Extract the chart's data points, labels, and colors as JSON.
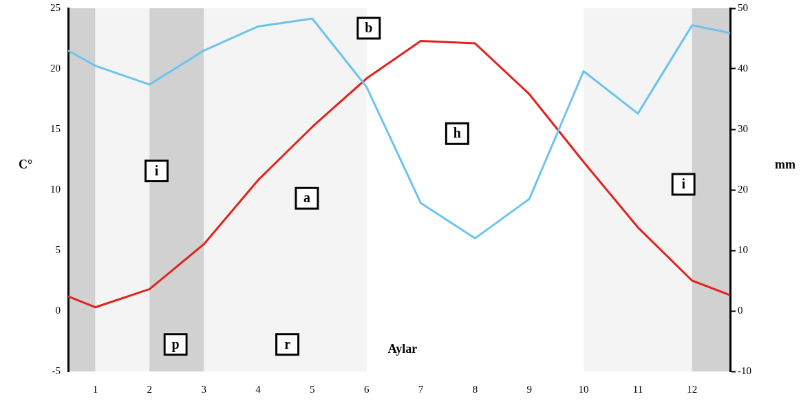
{
  "chart_data": {
    "type": "line",
    "xlabel": "Aylar",
    "ylabel": "C°",
    "y2label": "mm",
    "xlim": [
      0.5,
      12.7
    ],
    "xticks": [
      1,
      2,
      3,
      4,
      5,
      6,
      7,
      8,
      9,
      10,
      11,
      12
    ],
    "ylim": [
      -5,
      25
    ],
    "yticks": [
      -5,
      0,
      5,
      10,
      15,
      20,
      25
    ],
    "y2lim": [
      -10,
      50
    ],
    "y2ticks": [
      -10,
      0,
      10,
      20,
      30,
      40,
      50
    ],
    "x": [
      0.5,
      1,
      2,
      3,
      4,
      5,
      6,
      7,
      8,
      9,
      10,
      11,
      12,
      12.7
    ],
    "series": [
      {
        "color": "#e0231c",
        "values": [
          1.2,
          0.3,
          1.8,
          5.5,
          10.8,
          15.2,
          19.2,
          22.3,
          22.1,
          17.9,
          12.3,
          6.9,
          2.5,
          1.3
        ]
      },
      {
        "color": "#6cc4ee",
        "axis": "y2",
        "values": [
          43,
          40.5,
          37.4,
          43,
          47,
          48.3,
          37,
          17.8,
          12,
          18.5,
          39.6,
          32.6,
          47.2,
          45.9
        ]
      }
    ],
    "bands": [
      {
        "axis": "x",
        "from": 0.5,
        "to": 1,
        "color": "#1a1a1a"
      },
      {
        "axis": "x",
        "from": 1,
        "to": 2,
        "color": "#c8c8c8"
      },
      {
        "axis": "x",
        "from": 2,
        "to": 3,
        "color": "#1a1a1a"
      },
      {
        "axis": "x",
        "from": 3,
        "to": 6,
        "color": "#c8c8c8"
      },
      {
        "axis": "x",
        "from": 10,
        "to": 12,
        "color": "#c8c8c8"
      },
      {
        "axis": "x",
        "from": 12,
        "to": 12.7,
        "color": "#1a1a1a"
      }
    ],
    "annotations": [
      {
        "text": "b",
        "x": 6.04,
        "y": 23.35
      },
      {
        "text": "h",
        "x": 7.67,
        "y": 14.65
      },
      {
        "text": "i",
        "x": 2.13,
        "y": 11.56
      },
      {
        "text": "i",
        "x": 11.84,
        "y": 10.45
      },
      {
        "text": "a",
        "x": 4.9,
        "y": 9.3
      },
      {
        "text": "p",
        "x": 2.48,
        "y": -2.77
      },
      {
        "text": "r",
        "x": 4.54,
        "y": -2.77
      }
    ],
    "grid": false,
    "legend": false,
    "marker": "none",
    "line_style": "solid"
  }
}
